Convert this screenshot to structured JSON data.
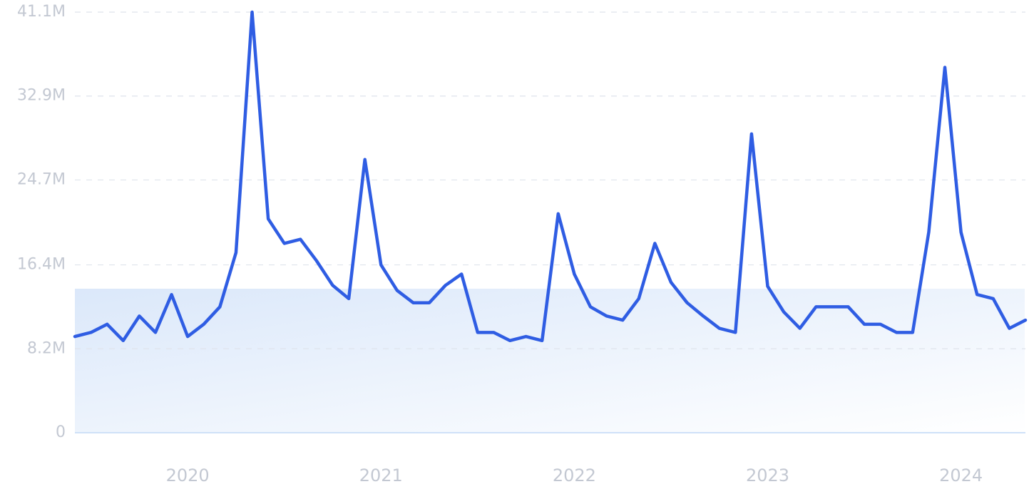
{
  "chart_data": {
    "type": "line",
    "categories": [
      null,
      null,
      null,
      null,
      null,
      null,
      null,
      "2020",
      null,
      null,
      null,
      null,
      null,
      null,
      null,
      null,
      null,
      null,
      null,
      "2021",
      null,
      null,
      null,
      null,
      null,
      null,
      null,
      null,
      null,
      null,
      null,
      "2022",
      null,
      null,
      null,
      null,
      null,
      null,
      null,
      null,
      null,
      null,
      null,
      "2023",
      null,
      null,
      null,
      null,
      null,
      null,
      null,
      null,
      null,
      null,
      null,
      "2024",
      null,
      null,
      null,
      null
    ],
    "series": [
      {
        "color": "#2f5de3",
        "values": [
          9.4,
          9.8,
          10.6,
          9.0,
          11.4,
          9.8,
          13.5,
          9.4,
          10.6,
          12.3,
          17.6,
          41.1,
          20.9,
          18.5,
          18.9,
          16.8,
          14.4,
          13.1,
          26.7,
          16.4,
          13.9,
          12.7,
          12.7,
          14.4,
          15.5,
          9.8,
          9.8,
          9.0,
          9.4,
          9.0,
          21.4,
          15.5,
          12.3,
          11.4,
          11.0,
          13.1,
          18.5,
          14.7,
          12.7,
          11.4,
          10.2,
          9.8,
          29.2,
          14.3,
          11.8,
          10.2,
          12.3,
          12.3,
          12.3,
          10.6,
          10.6,
          9.8,
          9.8,
          19.6,
          35.7,
          19.6,
          13.5,
          13.1,
          10.2,
          11.0
        ]
      }
    ],
    "ylim": [
      0,
      41.1
    ],
    "yticks": [
      0,
      {
        "value": 8.2,
        "label": "8.2M"
      },
      {
        "value": 16.4,
        "label": "16.4M"
      },
      {
        "value": 24.7,
        "label": "24.7M"
      },
      {
        "value": 32.9,
        "label": "32.9M"
      },
      {
        "value": 41.1,
        "label": "41.1M"
      }
    ],
    "grid": true
  }
}
